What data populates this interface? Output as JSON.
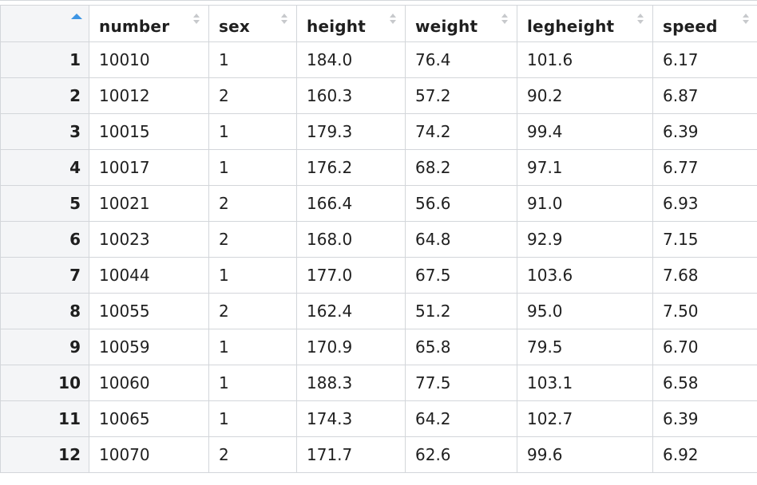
{
  "table": {
    "columns": [
      "number",
      "sex",
      "height",
      "weight",
      "legheight",
      "speed"
    ],
    "rows": [
      {
        "index": "1",
        "cells": [
          "10010",
          "1",
          "184.0",
          "76.4",
          "101.6",
          "6.17"
        ]
      },
      {
        "index": "2",
        "cells": [
          "10012",
          "2",
          "160.3",
          "57.2",
          "90.2",
          "6.87"
        ]
      },
      {
        "index": "3",
        "cells": [
          "10015",
          "1",
          "179.3",
          "74.2",
          "99.4",
          "6.39"
        ]
      },
      {
        "index": "4",
        "cells": [
          "10017",
          "1",
          "176.2",
          "68.2",
          "97.1",
          "6.77"
        ]
      },
      {
        "index": "5",
        "cells": [
          "10021",
          "2",
          "166.4",
          "56.6",
          "91.0",
          "6.93"
        ]
      },
      {
        "index": "6",
        "cells": [
          "10023",
          "2",
          "168.0",
          "64.8",
          "92.9",
          "7.15"
        ]
      },
      {
        "index": "7",
        "cells": [
          "10044",
          "1",
          "177.0",
          "67.5",
          "103.6",
          "7.68"
        ]
      },
      {
        "index": "8",
        "cells": [
          "10055",
          "2",
          "162.4",
          "51.2",
          "95.0",
          "7.50"
        ]
      },
      {
        "index": "9",
        "cells": [
          "10059",
          "1",
          "170.9",
          "65.8",
          "79.5",
          "6.70"
        ]
      },
      {
        "index": "10",
        "cells": [
          "10060",
          "1",
          "188.3",
          "77.5",
          "103.1",
          "6.58"
        ]
      },
      {
        "index": "11",
        "cells": [
          "10065",
          "1",
          "174.3",
          "64.2",
          "102.7",
          "6.39"
        ]
      },
      {
        "index": "12",
        "cells": [
          "10070",
          "2",
          "171.7",
          "62.6",
          "99.6",
          "6.92"
        ]
      }
    ]
  },
  "icons": {
    "row_index_sort": "sort-ascending-icon",
    "column_sort": "sort-icon"
  },
  "colors": {
    "accent": "#3d95e4",
    "grid_line": "#d3d6da",
    "row_header_bg": "#f4f5f7"
  }
}
